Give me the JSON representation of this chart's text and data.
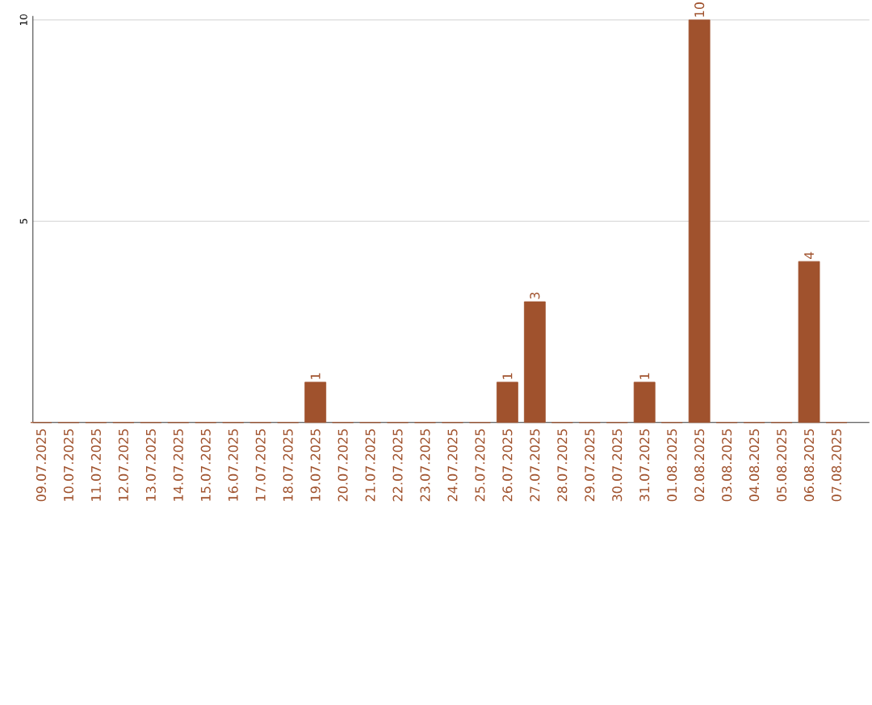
{
  "chart_data": {
    "type": "bar",
    "categories": [
      "09.07.2025",
      "10.07.2025",
      "11.07.2025",
      "12.07.2025",
      "13.07.2025",
      "14.07.2025",
      "15.07.2025",
      "16.07.2025",
      "17.07.2025",
      "18.07.2025",
      "19.07.2025",
      "20.07.2025",
      "21.07.2025",
      "22.07.2025",
      "23.07.2025",
      "24.07.2025",
      "25.07.2025",
      "26.07.2025",
      "27.07.2025",
      "28.07.2025",
      "29.07.2025",
      "30.07.2025",
      "31.07.2025",
      "01.08.2025",
      "02.08.2025",
      "03.08.2025",
      "04.08.2025",
      "05.08.2025",
      "06.08.2025",
      "07.08.2025"
    ],
    "values": [
      0,
      0,
      0,
      0,
      0,
      0,
      0,
      0,
      0,
      0,
      1,
      0,
      0,
      0,
      0,
      0,
      0,
      1,
      3,
      0,
      0,
      0,
      1,
      0,
      10,
      0,
      0,
      0,
      4,
      0
    ],
    "value_labels": [
      null,
      null,
      null,
      null,
      null,
      null,
      null,
      null,
      null,
      null,
      "1",
      null,
      null,
      null,
      null,
      null,
      null,
      "1",
      "3",
      null,
      null,
      null,
      "1",
      null,
      "10",
      null,
      null,
      null,
      "4",
      null
    ],
    "color": "#a0522d",
    "ylim": [
      0,
      10.1
    ],
    "yticks": [
      5,
      10
    ],
    "grid": "y"
  }
}
